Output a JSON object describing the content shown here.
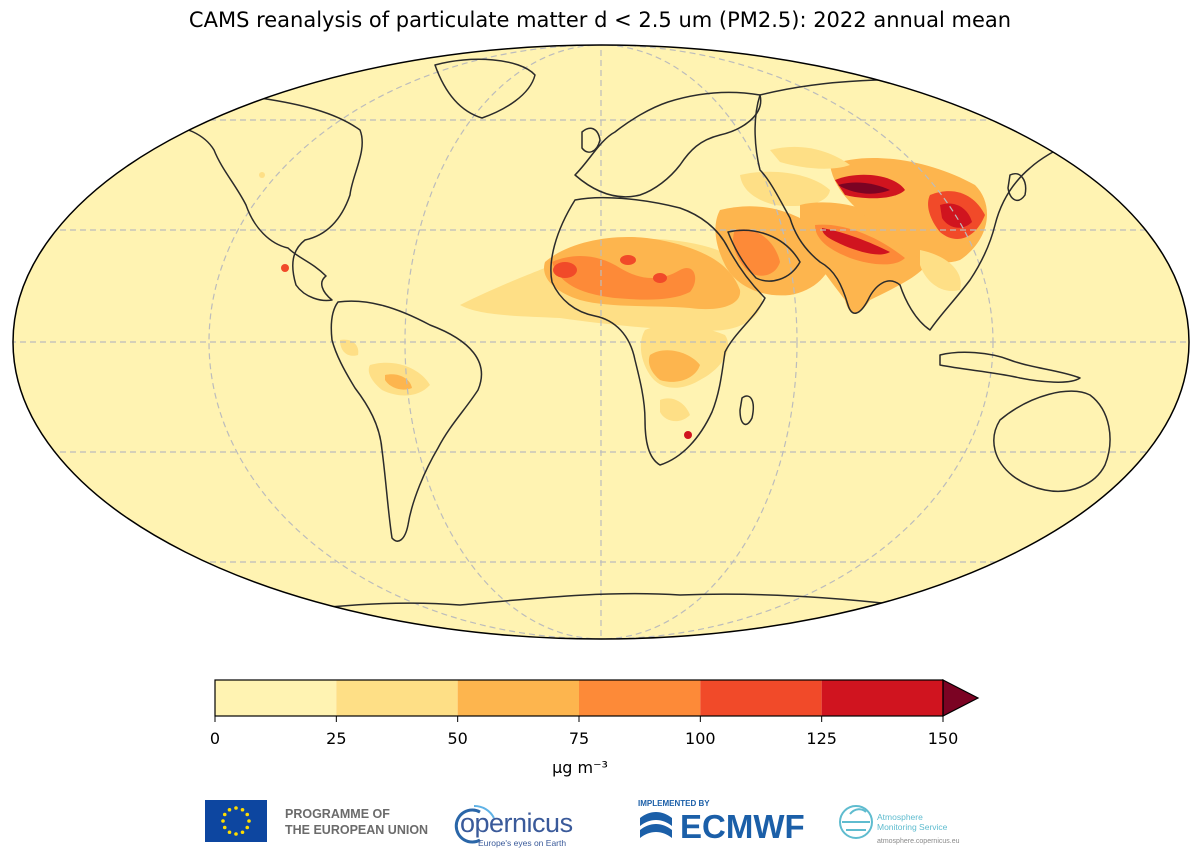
{
  "title": "CAMS reanalysis of particulate matter d < 2.5 um (PM2.5): 2022 annual mean",
  "colorbar": {
    "ticks": [
      "0",
      "25",
      "50",
      "75",
      "100",
      "125",
      "150"
    ],
    "unit_label": "μg m⁻³",
    "bins": [
      {
        "range": [
          0,
          25
        ],
        "color": "#fff3b2"
      },
      {
        "range": [
          25,
          50
        ],
        "color": "#fedf86"
      },
      {
        "range": [
          50,
          75
        ],
        "color": "#fdb54e"
      },
      {
        "range": [
          75,
          100
        ],
        "color": "#fd8a38"
      },
      {
        "range": [
          100,
          125
        ],
        "color": "#f14a29"
      },
      {
        "range": [
          125,
          150
        ],
        "color": "#d0141f"
      }
    ],
    "extend_color": "#7b0323"
  },
  "map": {
    "background_color": "#fff3b2",
    "gridline_color": "#bcbcbc",
    "coast_color": "#2b2b2b"
  },
  "logos": {
    "eu": {
      "line1": "PROGRAMME OF",
      "line2": "THE EUROPEAN UNION",
      "flag_color": "#0d46a0",
      "star_color": "#ffdd00"
    },
    "copernicus": {
      "word": "opernicus",
      "tagline": "Europe's eyes on Earth"
    },
    "ecmwf": {
      "implemented_by": "IMPLEMENTED BY",
      "word": "ECMWF"
    },
    "ams": {
      "line1": "Atmosphere",
      "line2": "Monitoring Service",
      "url": "atmosphere.copernicus.eu"
    }
  }
}
